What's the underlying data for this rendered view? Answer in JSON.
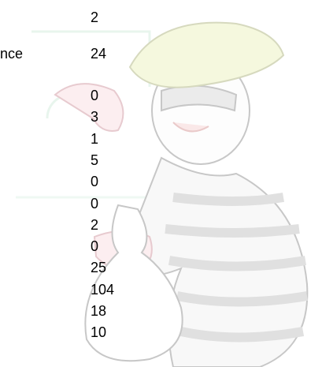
{
  "rows": [
    {
      "value": "2"
    },
    {
      "label": "nce",
      "value": "24"
    },
    {
      "value": "0"
    },
    {
      "value": "3"
    },
    {
      "value": "1"
    },
    {
      "value": "5"
    },
    {
      "value": "0"
    },
    {
      "value": "0"
    },
    {
      "value": "2"
    },
    {
      "value": "0"
    },
    {
      "value": "25"
    },
    {
      "value": "104"
    },
    {
      "value": "18"
    },
    {
      "value": "10"
    }
  ]
}
